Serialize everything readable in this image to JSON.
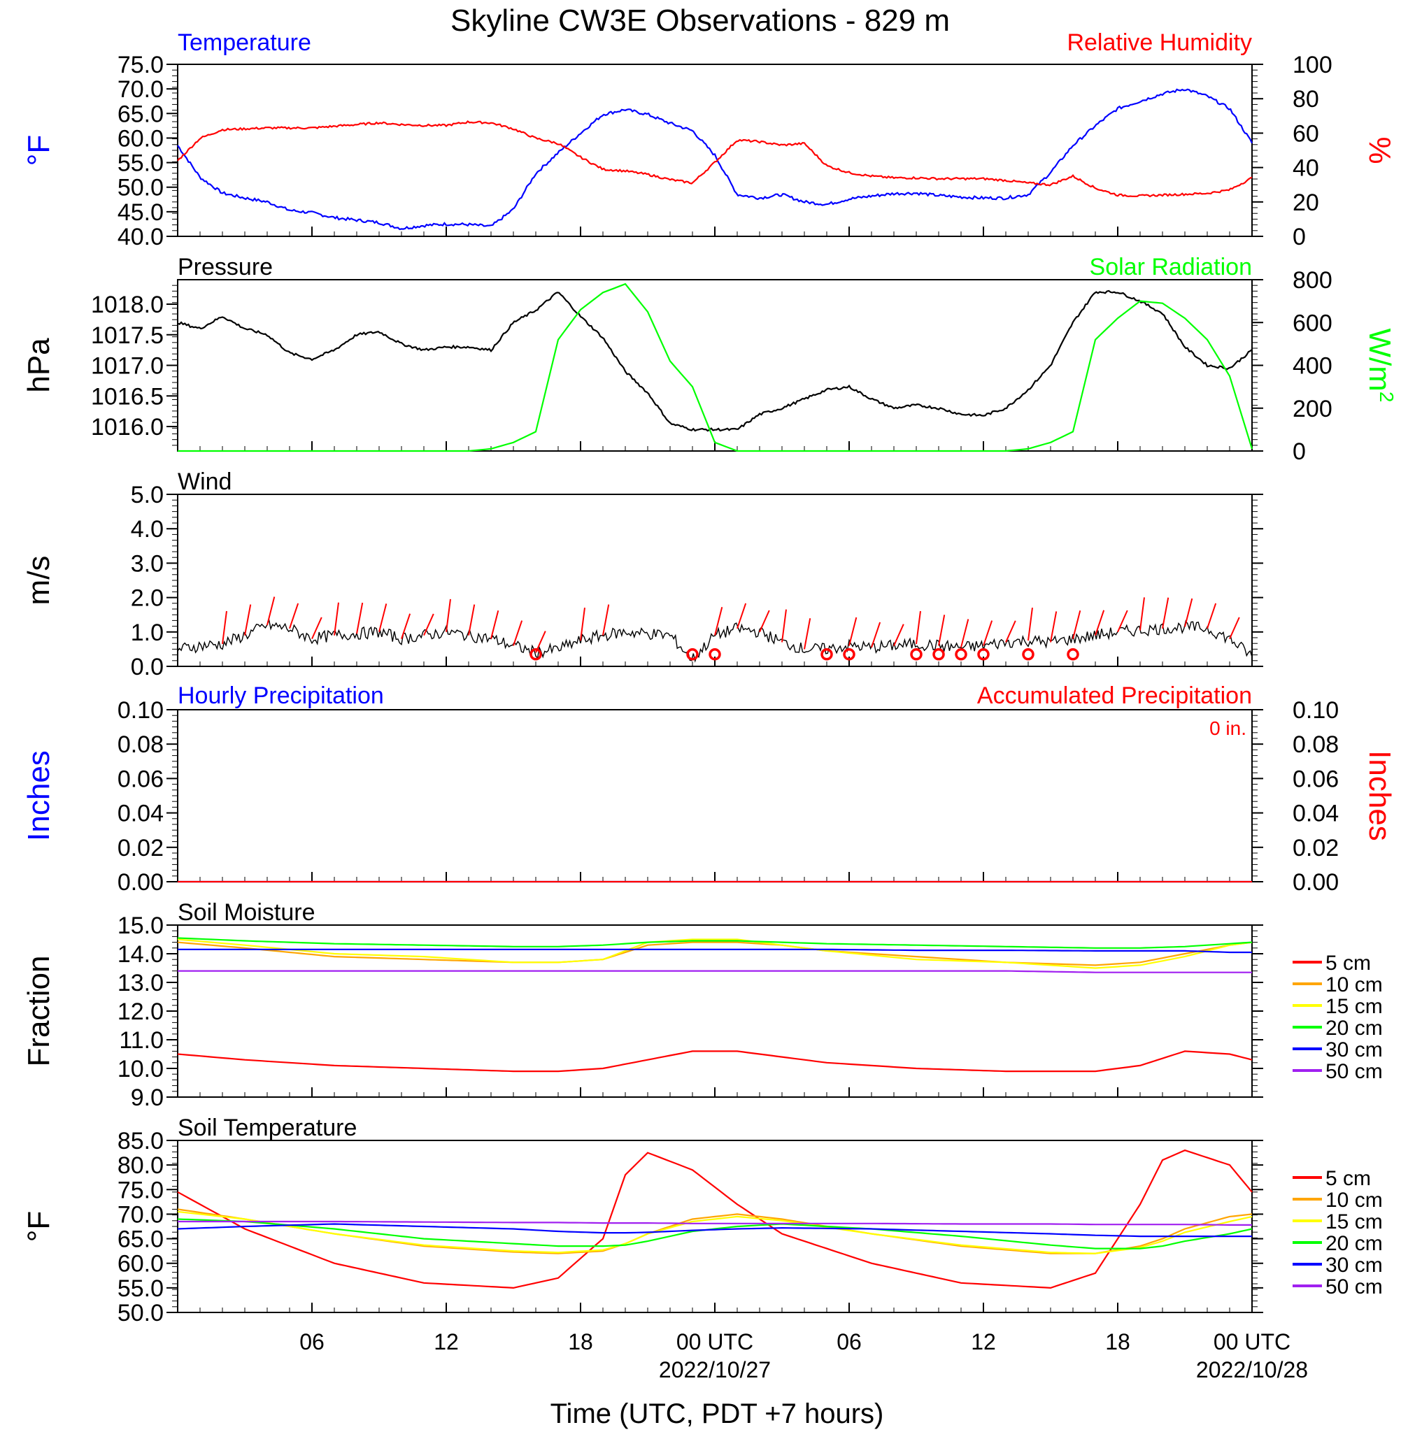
{
  "page_title": "Skyline CW3E Observations - 829 m",
  "x_axis": {
    "label": "Time (UTC, PDT +7 hours)",
    "ticks": [
      "06",
      "12",
      "18",
      "00 UTC",
      "06",
      "12",
      "18",
      "00 UTC"
    ],
    "dates": [
      "2022/10/27",
      "2022/10/28"
    ]
  },
  "colors": {
    "temperature": "#0000ff",
    "humidity": "#ff0000",
    "pressure": "#000000",
    "solar": "#00ff00",
    "wind": "#000000",
    "wind_barb": "#ff0000",
    "hourly_precip": "#0000ff",
    "accum_precip": "#ff0000",
    "depth_5cm": "#ff0000",
    "depth_10cm": "#ffa500",
    "depth_15cm": "#ffff00",
    "depth_20cm": "#00ff00",
    "depth_30cm": "#0000ff",
    "depth_50cm": "#a020f0"
  },
  "chart_data": [
    {
      "type": "line",
      "title": "Temperature",
      "title_right": "Relative Humidity",
      "ylabel": "°F",
      "ylabel_right": "%",
      "ylim": [
        40,
        75
      ],
      "ylim_right": [
        0,
        100
      ],
      "yticks": [
        "40.0",
        "45.0",
        "50.0",
        "55.0",
        "60.0",
        "65.0",
        "70.0",
        "75.0"
      ],
      "yticks_right": [
        "0",
        "20",
        "40",
        "60",
        "80",
        "100"
      ],
      "x_hours": [
        1,
        2,
        3,
        4,
        5,
        6,
        7,
        8,
        9,
        10,
        11,
        12,
        13,
        14,
        15,
        16,
        17,
        18,
        19,
        20,
        21,
        22,
        23,
        24,
        25,
        26,
        27,
        28,
        29,
        30,
        31,
        32,
        33,
        34,
        35,
        36,
        37,
        38,
        39,
        40,
        41,
        42,
        43,
        44,
        45,
        46,
        47,
        48,
        49
      ],
      "series": [
        {
          "name": "Temperature",
          "axis": "left",
          "color": "#0000ff",
          "values": [
            58.5,
            52.0,
            48.8,
            47.8,
            47.0,
            45.3,
            44.8,
            43.8,
            43.3,
            42.8,
            41.6,
            42.2,
            42.5,
            42.4,
            42.0,
            45.5,
            52.8,
            57.0,
            61.0,
            64.8,
            65.8,
            64.8,
            63.0,
            61.5,
            56.5,
            48.5,
            47.8,
            48.5,
            47.0,
            46.5,
            47.6,
            48.2,
            48.7,
            48.8,
            48.3,
            48.0,
            47.8,
            47.8,
            48.5,
            53.0,
            58.5,
            62.5,
            66.0,
            67.5,
            69.0,
            70.0,
            68.5,
            66.0,
            59.0
          ]
        },
        {
          "name": "Relative Humidity",
          "axis": "right",
          "color": "#ff0000",
          "values": [
            44,
            57,
            62,
            62.5,
            63,
            63,
            63,
            64,
            65,
            66,
            65,
            64.5,
            64.5,
            66.5,
            66,
            62.5,
            57,
            54,
            46,
            39,
            38,
            36,
            33,
            31,
            43,
            56,
            55,
            53,
            54,
            41,
            37,
            35,
            34,
            34,
            33.5,
            33.5,
            33.5,
            32.5,
            31,
            30,
            35,
            28,
            24,
            23.5,
            24,
            24.5,
            25,
            27,
            34
          ]
        }
      ]
    },
    {
      "type": "line",
      "title": "Pressure",
      "title_right": "Solar Radiation",
      "ylabel": "hPa",
      "ylabel_right": "W/m",
      "ylabel_right_sup": "2",
      "ylim": [
        1015.6,
        1018.4
      ],
      "ylim_right": [
        0,
        800
      ],
      "yticks": [
        "1016.0",
        "1016.5",
        "1017.0",
        "1017.5",
        "1018.0"
      ],
      "yticks_right": [
        "0",
        "200",
        "400",
        "600",
        "800"
      ],
      "x_hours": [
        1,
        2,
        3,
        4,
        5,
        6,
        7,
        8,
        9,
        10,
        11,
        12,
        13,
        14,
        15,
        16,
        17,
        18,
        19,
        20,
        21,
        22,
        23,
        24,
        25,
        26,
        27,
        28,
        29,
        30,
        31,
        32,
        33,
        34,
        35,
        36,
        37,
        38,
        39,
        40,
        41,
        42,
        43,
        44,
        45,
        46,
        47,
        48,
        49
      ],
      "series": [
        {
          "name": "Pressure",
          "axis": "left",
          "color": "#000000",
          "values": [
            1017.7,
            1017.6,
            1017.8,
            1017.6,
            1017.5,
            1017.2,
            1017.1,
            1017.25,
            1017.5,
            1017.55,
            1017.35,
            1017.25,
            1017.3,
            1017.3,
            1017.25,
            1017.7,
            1017.9,
            1018.2,
            1017.8,
            1017.45,
            1016.9,
            1016.55,
            1016.05,
            1015.95,
            1015.95,
            1015.95,
            1016.2,
            1016.3,
            1016.45,
            1016.6,
            1016.65,
            1016.45,
            1016.3,
            1016.35,
            1016.3,
            1016.2,
            1016.18,
            1016.3,
            1016.6,
            1017.0,
            1017.7,
            1018.2,
            1018.2,
            1018.05,
            1017.85,
            1017.3,
            1017.0,
            1016.95,
            1017.25
          ]
        },
        {
          "name": "Solar Radiation",
          "axis": "right",
          "color": "#00ff00",
          "values": [
            0,
            0,
            0,
            0,
            0,
            0,
            0,
            0,
            0,
            0,
            0,
            0,
            0,
            0,
            10,
            40,
            90,
            520,
            660,
            740,
            780,
            650,
            420,
            300,
            40,
            0,
            0,
            0,
            0,
            0,
            0,
            0,
            0,
            0,
            0,
            0,
            0,
            0,
            10,
            40,
            90,
            520,
            620,
            700,
            690,
            620,
            520,
            350,
            10
          ]
        }
      ]
    },
    {
      "type": "line",
      "title": "Wind",
      "ylabel": "m/s",
      "ylim": [
        0,
        5
      ],
      "yticks": [
        "0.0",
        "1.0",
        "2.0",
        "3.0",
        "4.0",
        "5.0"
      ],
      "x_hours": [
        1,
        2,
        3,
        4,
        5,
        6,
        7,
        8,
        9,
        10,
        11,
        12,
        13,
        14,
        15,
        16,
        17,
        18,
        19,
        20,
        21,
        22,
        23,
        24,
        25,
        26,
        27,
        28,
        29,
        30,
        31,
        32,
        33,
        34,
        35,
        36,
        37,
        38,
        39,
        40,
        41,
        42,
        43,
        44,
        45,
        46,
        47,
        48,
        49
      ],
      "series": [
        {
          "name": "Wind Speed",
          "color": "#000000",
          "values": [
            0.5,
            0.6,
            0.65,
            0.9,
            1.2,
            1.1,
            0.8,
            0.9,
            0.95,
            1.0,
            0.8,
            0.9,
            1.0,
            0.9,
            0.8,
            0.6,
            0.4,
            0.5,
            0.75,
            0.9,
            1.0,
            0.95,
            0.9,
            0.2,
            0.9,
            1.1,
            1.0,
            0.7,
            0.5,
            0.5,
            0.6,
            0.55,
            0.6,
            0.65,
            0.6,
            0.55,
            0.6,
            0.7,
            0.75,
            0.7,
            0.8,
            0.9,
            1.0,
            1.05,
            1.1,
            1.15,
            1.1,
            0.8,
            0.3
          ]
        }
      ],
      "barbs_hours": [
        3,
        4,
        5,
        6,
        7,
        8,
        9,
        10,
        11,
        12,
        13,
        14,
        15,
        16,
        17,
        19,
        20,
        25,
        26,
        27,
        28,
        29,
        31,
        32,
        33,
        34,
        35,
        36,
        37,
        38,
        39,
        40,
        41,
        42,
        43,
        44,
        45,
        46,
        47,
        48
      ],
      "calm_hours": [
        17,
        24,
        25,
        30,
        31,
        34,
        35,
        36,
        37,
        39,
        41
      ]
    },
    {
      "type": "line",
      "title": "Hourly Precipitation",
      "title_right": "Accumulated Precipitation",
      "ylabel": "Inches",
      "ylabel_right": "Inches",
      "annotation": "0 in.",
      "ylim": [
        0,
        0.1
      ],
      "ylim_right": [
        0,
        0.1
      ],
      "yticks": [
        "0.00",
        "0.02",
        "0.04",
        "0.06",
        "0.08",
        "0.10"
      ],
      "yticks_right": [
        "0.00",
        "0.02",
        "0.04",
        "0.06",
        "0.08",
        "0.10"
      ],
      "x_hours": [
        1,
        49
      ],
      "series": [
        {
          "name": "Hourly Precipitation",
          "axis": "left",
          "color": "#0000ff",
          "values": [
            0,
            0
          ]
        },
        {
          "name": "Accumulated Precipitation",
          "axis": "right",
          "color": "#ff0000",
          "values": [
            0,
            0
          ]
        }
      ]
    },
    {
      "type": "line",
      "title": "Soil Moisture",
      "ylabel": "Fraction",
      "ylim": [
        9,
        15
      ],
      "yticks": [
        "9.0",
        "10.0",
        "11.0",
        "12.0",
        "13.0",
        "14.0",
        "15.0"
      ],
      "legend": [
        "5 cm",
        "10 cm",
        "15 cm",
        "20 cm",
        "30 cm",
        "50 cm"
      ],
      "x_hours": [
        1,
        4,
        8,
        12,
        16,
        18,
        20,
        22,
        24,
        26,
        28,
        30,
        34,
        38,
        42,
        44,
        46,
        48,
        49
      ],
      "series": [
        {
          "name": "5 cm",
          "color": "#ff0000",
          "values": [
            10.5,
            10.3,
            10.1,
            10.0,
            9.9,
            9.9,
            10.0,
            10.3,
            10.6,
            10.6,
            10.4,
            10.2,
            10.0,
            9.9,
            9.9,
            10.1,
            10.6,
            10.5,
            10.3
          ]
        },
        {
          "name": "10 cm",
          "color": "#ffa500",
          "values": [
            14.4,
            14.2,
            13.9,
            13.8,
            13.7,
            13.7,
            13.8,
            14.3,
            14.4,
            14.4,
            14.3,
            14.1,
            13.9,
            13.7,
            13.6,
            13.7,
            14.0,
            14.3,
            14.4
          ]
        },
        {
          "name": "15 cm",
          "color": "#ffff00",
          "values": [
            14.5,
            14.3,
            14.0,
            13.9,
            13.7,
            13.7,
            13.8,
            14.4,
            14.5,
            14.5,
            14.3,
            14.1,
            13.8,
            13.7,
            13.5,
            13.6,
            13.9,
            14.3,
            14.4
          ]
        },
        {
          "name": "20 cm",
          "color": "#00ff00",
          "values": [
            14.55,
            14.45,
            14.35,
            14.3,
            14.25,
            14.25,
            14.3,
            14.4,
            14.45,
            14.45,
            14.4,
            14.35,
            14.3,
            14.25,
            14.2,
            14.2,
            14.25,
            14.35,
            14.4
          ]
        },
        {
          "name": "30 cm",
          "color": "#0000ff",
          "values": [
            14.15,
            14.15,
            14.15,
            14.15,
            14.15,
            14.15,
            14.15,
            14.15,
            14.15,
            14.15,
            14.15,
            14.15,
            14.12,
            14.12,
            14.1,
            14.1,
            14.1,
            14.05,
            14.05
          ]
        },
        {
          "name": "50 cm",
          "color": "#a020f0",
          "values": [
            13.4,
            13.4,
            13.4,
            13.4,
            13.4,
            13.4,
            13.4,
            13.4,
            13.4,
            13.4,
            13.4,
            13.4,
            13.4,
            13.4,
            13.35,
            13.35,
            13.35,
            13.35,
            13.35
          ]
        }
      ]
    },
    {
      "type": "line",
      "title": "Soil Temperature",
      "ylabel": "°F",
      "ylim": [
        50,
        85
      ],
      "yticks": [
        "50.0",
        "55.0",
        "60.0",
        "65.0",
        "70.0",
        "75.0",
        "80.0",
        "85.0"
      ],
      "legend": [
        "5 cm",
        "10 cm",
        "15 cm",
        "20 cm",
        "30 cm",
        "50 cm"
      ],
      "x_hours": [
        1,
        4,
        8,
        12,
        16,
        18,
        20,
        21,
        22,
        24,
        26,
        28,
        32,
        36,
        40,
        42,
        44,
        45,
        46,
        48,
        49
      ],
      "series": [
        {
          "name": "5 cm",
          "color": "#ff0000",
          "values": [
            74.5,
            67,
            60,
            56,
            55,
            57,
            65,
            78,
            82.5,
            79,
            72,
            66,
            60,
            56,
            55,
            58,
            72,
            81,
            83,
            80,
            74.5
          ]
        },
        {
          "name": "10 cm",
          "color": "#ffa500",
          "values": [
            71,
            69,
            66,
            63.5,
            62.3,
            62,
            62.5,
            64,
            66,
            69,
            70,
            69,
            66,
            63.5,
            62,
            62,
            63.5,
            65,
            67,
            69.5,
            70
          ]
        },
        {
          "name": "15 cm",
          "color": "#ffff00",
          "values": [
            70.5,
            69,
            66,
            63.7,
            62.5,
            62.2,
            62.7,
            64,
            66,
            68.5,
            69.5,
            68.7,
            66,
            63.7,
            62.2,
            62,
            63.2,
            64.5,
            66.3,
            68.5,
            69.5
          ]
        },
        {
          "name": "20 cm",
          "color": "#00ff00",
          "values": [
            69,
            68.5,
            67,
            65,
            64,
            63.5,
            63.5,
            63.7,
            64.5,
            66.5,
            67.5,
            68,
            67,
            65.5,
            63.7,
            63,
            63,
            63.5,
            64.5,
            66,
            67
          ]
        },
        {
          "name": "30 cm",
          "color": "#0000ff",
          "values": [
            67,
            67.5,
            68,
            67.5,
            67,
            66.5,
            66.2,
            66.2,
            66.3,
            66.7,
            67,
            67.2,
            67,
            66.5,
            66,
            65.7,
            65.5,
            65.5,
            65.5,
            65.5,
            65.5
          ]
        },
        {
          "name": "50 cm",
          "color": "#a020f0",
          "values": [
            68.5,
            68.5,
            68.5,
            68.4,
            68.3,
            68.3,
            68.2,
            68.2,
            68.2,
            68.1,
            68.1,
            68.1,
            68.1,
            68.0,
            68.0,
            67.9,
            67.9,
            67.9,
            67.9,
            67.8,
            67.8
          ]
        }
      ]
    }
  ]
}
